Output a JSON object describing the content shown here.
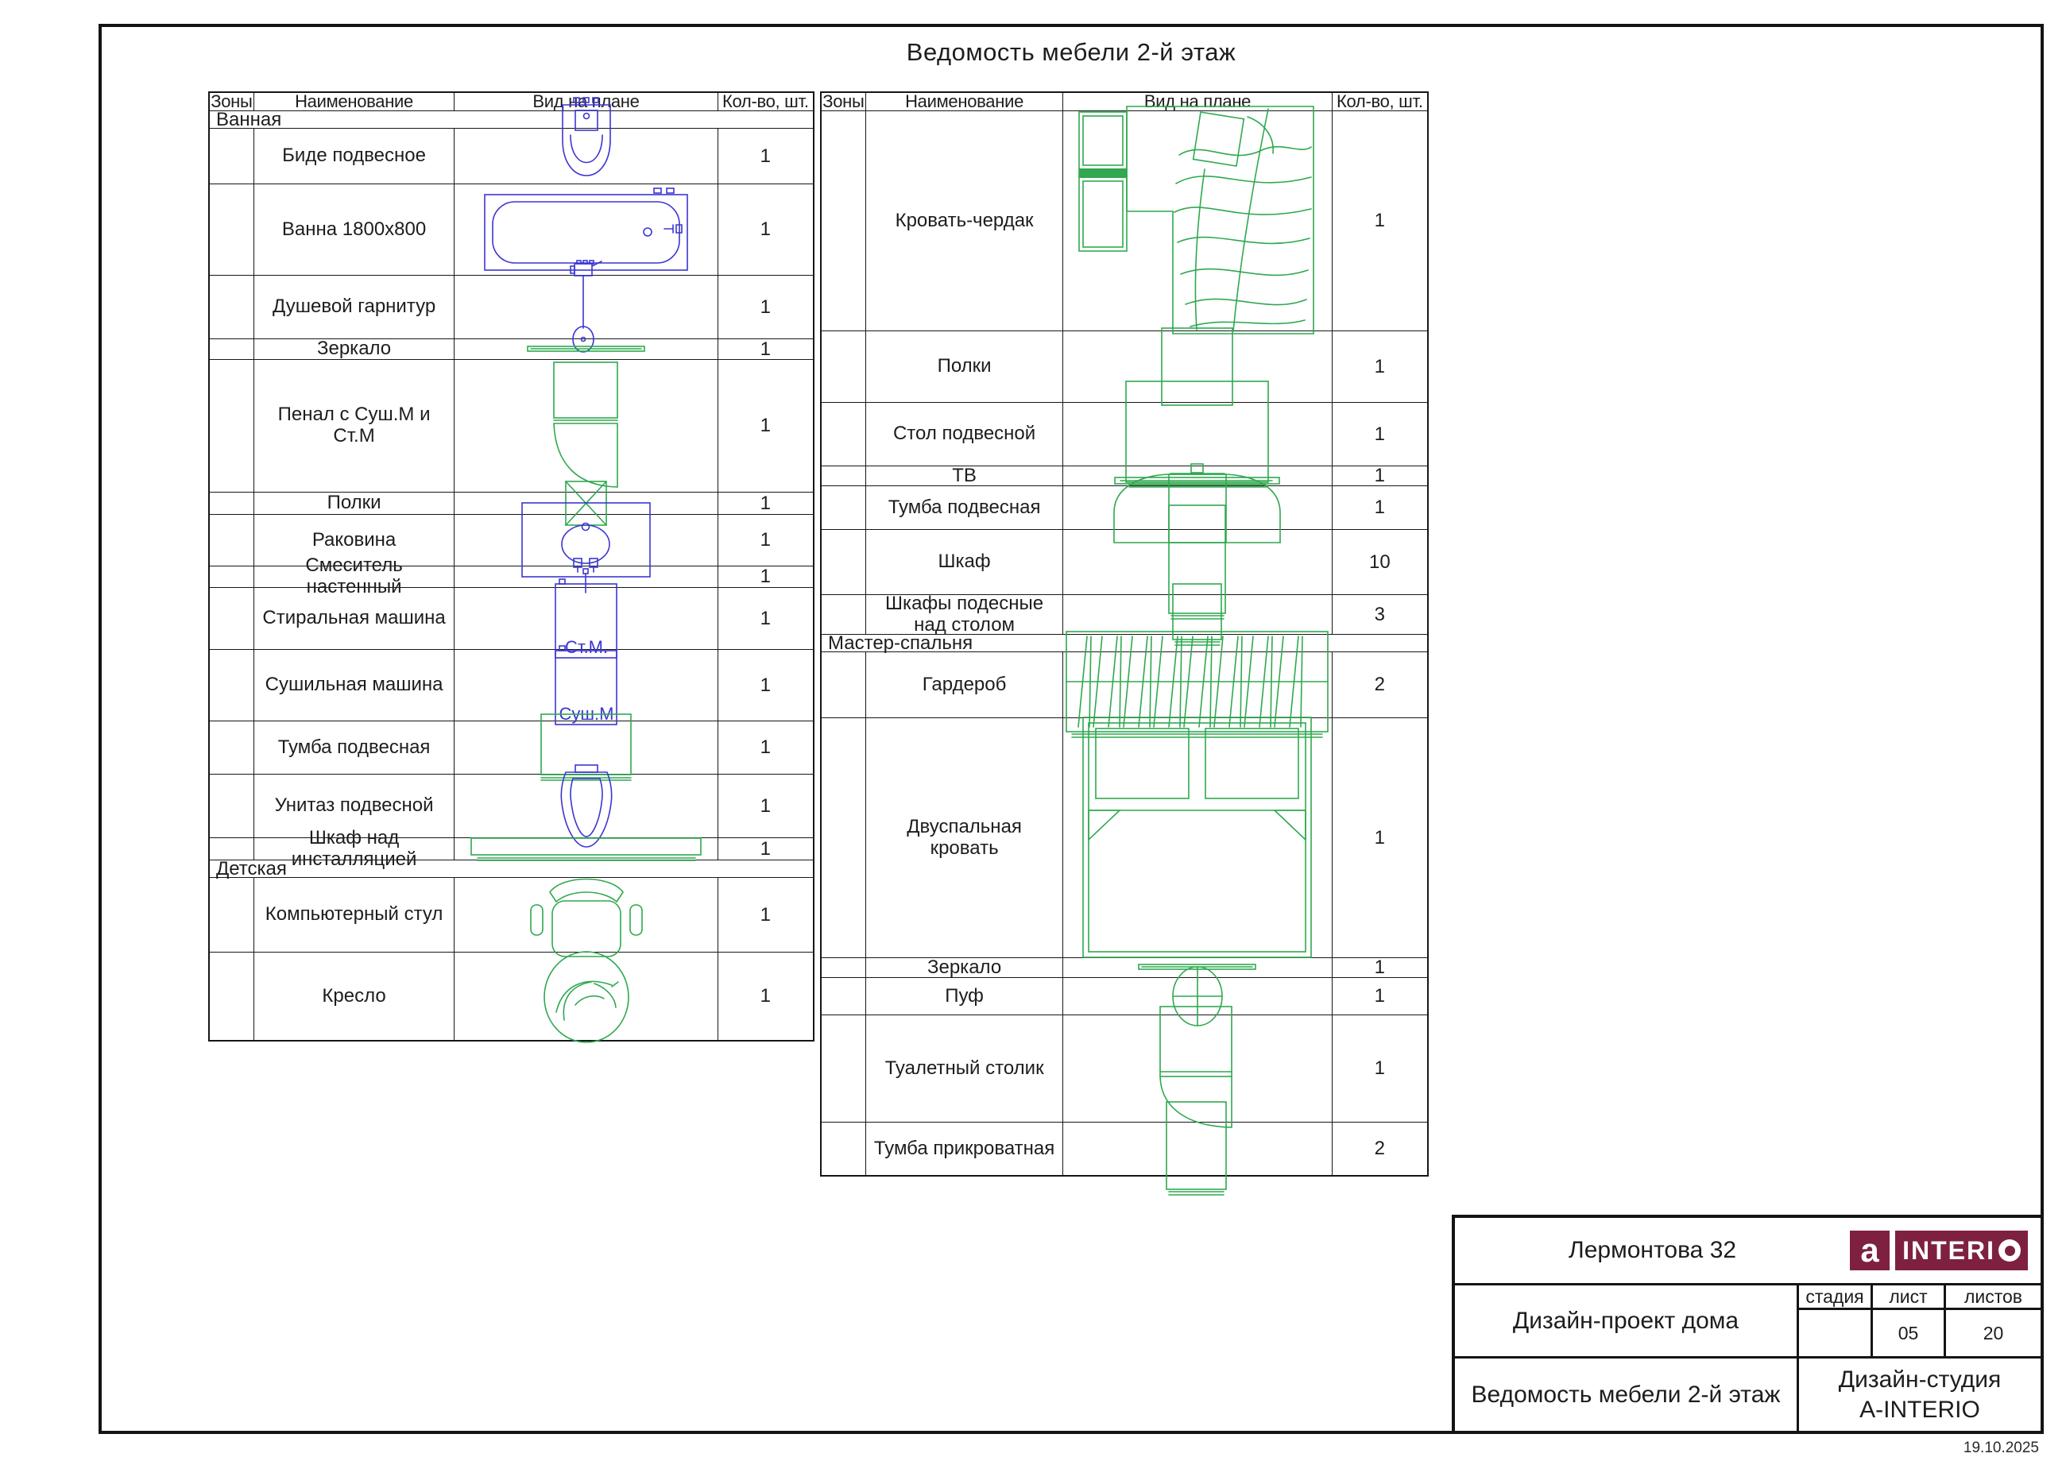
{
  "page": {
    "title": "Ведомость мебели 2-й этаж",
    "date": "19.10.2025"
  },
  "colors": {
    "furniture_green": "#2fa84f",
    "plumbing_blue": "#3b36d1",
    "logo_maroon": "#7e2140",
    "line_black": "#161616"
  },
  "columns": {
    "zone": "Зоны",
    "name": "Наименование",
    "plan": "Вид на плане",
    "qty": "Кол-во, шт."
  },
  "left_table": {
    "rows": [
      {
        "type": "section",
        "title": "Ванная"
      },
      {
        "type": "item",
        "name": "Биде подвесное",
        "qty": "1",
        "icon": "bidet-top-view-icon"
      },
      {
        "type": "item",
        "name": "Ванна 1800х800",
        "qty": "1",
        "icon": "bathtub-top-view-icon"
      },
      {
        "type": "item",
        "name": "Душевой гарнитур",
        "qty": "1",
        "icon": "shower-set-icon"
      },
      {
        "type": "item",
        "name": "Зеркало",
        "qty": "1",
        "icon": "mirror-icon"
      },
      {
        "type": "item",
        "name": "Пенал с Суш.М и Ст.М",
        "qty": "1",
        "icon": "tall-cabinet-door-icon"
      },
      {
        "type": "item",
        "name": "Полки",
        "qty": "1",
        "icon": "shelf-x-icon"
      },
      {
        "type": "item",
        "name": "Раковина",
        "qty": "1",
        "icon": "sink-top-view-icon"
      },
      {
        "type": "item",
        "name": "Смеситель настенный",
        "qty": "1",
        "icon": "wall-mixer-icon"
      },
      {
        "type": "item",
        "name": "Стиральная машина",
        "qty": "1",
        "icon": "washing-machine-icon",
        "label": "Ст.М."
      },
      {
        "type": "item",
        "name": "Сушильная машина",
        "qty": "1",
        "icon": "dryer-machine-icon",
        "label": "Суш.М"
      },
      {
        "type": "item",
        "name": "Тумба подвесная",
        "qty": "1",
        "icon": "wall-cabinet-icon"
      },
      {
        "type": "item",
        "name": "Унитаз подвесной",
        "qty": "1",
        "icon": "toilet-top-view-icon"
      },
      {
        "type": "item",
        "name": "Шкаф над инсталляцией",
        "qty": "1",
        "icon": "over-installation-cabinet-icon"
      },
      {
        "type": "section",
        "title": "Детская"
      },
      {
        "type": "item",
        "name": "Компьютерный стул",
        "qty": "1",
        "icon": "office-chair-icon"
      },
      {
        "type": "item",
        "name": "Кресло",
        "qty": "1",
        "icon": "armchair-icon"
      }
    ]
  },
  "right_table": {
    "rows": [
      {
        "type": "item",
        "name": "Кровать-чердак",
        "qty": "1",
        "icon": "loft-bed-icon"
      },
      {
        "type": "item",
        "name": "Полки",
        "qty": "1",
        "icon": "shelves-icon"
      },
      {
        "type": "item",
        "name": "Стол подвесной",
        "qty": "1",
        "icon": "wall-desk-icon"
      },
      {
        "type": "item",
        "name": "ТВ",
        "qty": "1",
        "icon": "tv-icon"
      },
      {
        "type": "item",
        "name": "Тумба подвесная",
        "qty": "1",
        "icon": "arched-cabinet-icon"
      },
      {
        "type": "item",
        "name": "Шкаф",
        "qty": "10",
        "icon": "wardrobe-cabinet-icon"
      },
      {
        "type": "item",
        "name": "Шкафы подесные над столом",
        "qty": "3",
        "icon": "over-desk-cabinet-icon"
      },
      {
        "type": "section",
        "title": "Мастер-спальня"
      },
      {
        "type": "item",
        "name": "Гардероб",
        "qty": "2",
        "icon": "garderob-hatched-icon"
      },
      {
        "type": "item",
        "name": "Двуспальная кровать",
        "qty": "1",
        "icon": "double-bed-icon"
      },
      {
        "type": "item",
        "name": "Зеркало",
        "qty": "1",
        "icon": "mirror-icon"
      },
      {
        "type": "item",
        "name": "Пуф",
        "qty": "1",
        "icon": "pouf-icon"
      },
      {
        "type": "item",
        "name": "Туалетный столик",
        "qty": "1",
        "icon": "dressing-table-icon"
      },
      {
        "type": "item",
        "name": "Тумба прикроватная",
        "qty": "2",
        "icon": "bedside-cabinet-icon"
      }
    ]
  },
  "title_block": {
    "address": "Лермонтова 32",
    "logo": {
      "letter": "a",
      "word": "INTERIO"
    },
    "project": "Дизайн-проект дома",
    "stage_label": "стадия",
    "sheet_label": "лист",
    "sheets_label": "листов",
    "stage_value": "",
    "sheet_value": "05",
    "sheets_value": "20",
    "doc_name": "Ведомость мебели 2-й этаж",
    "studio": [
      "Дизайн-студия",
      "A-INTERIO"
    ]
  }
}
